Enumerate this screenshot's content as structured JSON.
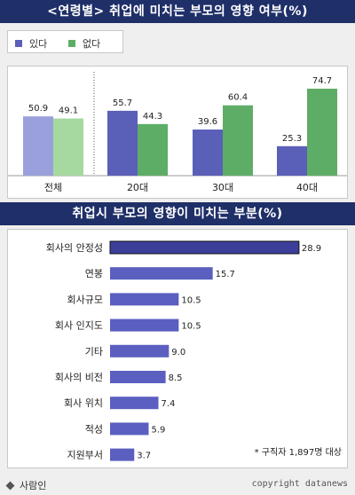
{
  "chart_data": [
    {
      "type": "bar",
      "title": "<연령별> 취업에 미치는 부모의 영향 여부(%)",
      "categories": [
        "전체",
        "20대",
        "30대",
        "40대"
      ],
      "series": [
        {
          "name": "있다",
          "values": [
            50.9,
            55.7,
            39.6,
            25.3
          ],
          "color": "#5a5fb8",
          "color_total": "#9aa0db"
        },
        {
          "name": "없다",
          "values": [
            49.1,
            44.3,
            60.4,
            74.7
          ],
          "color": "#5ead66",
          "color_total": "#a6d9a0"
        }
      ],
      "ylim": [
        0,
        80
      ],
      "legend": "top-left",
      "grid": false
    },
    {
      "type": "bar",
      "orientation": "horizontal",
      "title": "취업시 부모의 영향이 미치는 부분(%)",
      "categories": [
        "회사의 안정성",
        "연봉",
        "회사규모",
        "회사 인지도",
        "기타",
        "회사의 비전",
        "회사 위치",
        "적성",
        "지원부서"
      ],
      "values": [
        28.9,
        15.7,
        10.5,
        10.5,
        9.0,
        8.5,
        7.4,
        5.9,
        3.7
      ],
      "value_labels": [
        "28.9",
        "15.7",
        "10.5",
        "10.5",
        "9.0",
        "8.5",
        "7.4",
        "5.9",
        "3.7"
      ],
      "xlim": [
        0,
        30
      ],
      "highlight_color": "#3c3f9a",
      "color": "#5a5fc0",
      "note": "* 구직자 1,897명 대상"
    }
  ],
  "footer": {
    "source": "사람인",
    "copyright": "copyright datanews"
  },
  "colors": {
    "title_bg": "#1f2f68",
    "page_bg": "#efefef"
  }
}
